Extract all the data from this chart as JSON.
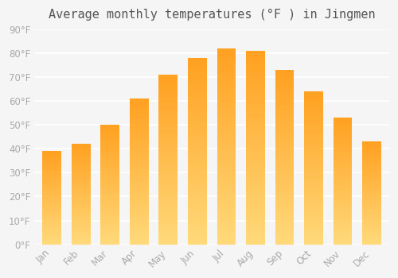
{
  "title": "Average monthly temperatures (°F ) in Jingmen",
  "months": [
    "Jan",
    "Feb",
    "Mar",
    "Apr",
    "May",
    "Jun",
    "Jul",
    "Aug",
    "Sep",
    "Oct",
    "Nov",
    "Dec"
  ],
  "values": [
    39,
    42,
    50,
    61,
    71,
    78,
    82,
    81,
    73,
    64,
    53,
    43
  ],
  "bar_color_bottom": "#FFD97A",
  "bar_color_top": "#FFA020",
  "background_color": "#f5f5f5",
  "grid_color": "#ffffff",
  "ylim": [
    0,
    90
  ],
  "yticks": [
    0,
    10,
    20,
    30,
    40,
    50,
    60,
    70,
    80,
    90
  ],
  "ytick_labels": [
    "0°F",
    "10°F",
    "20°F",
    "30°F",
    "40°F",
    "50°F",
    "60°F",
    "70°F",
    "80°F",
    "90°F"
  ],
  "title_fontsize": 11,
  "tick_fontsize": 8.5,
  "tick_color": "#aaaaaa"
}
